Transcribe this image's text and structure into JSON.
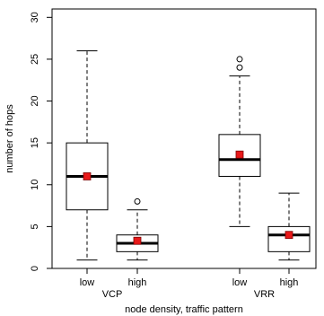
{
  "chart_data": {
    "type": "boxplot",
    "title": "",
    "xlabel": "node density, traffic pattern",
    "ylabel": "number of hops",
    "ylim": [
      0,
      31
    ],
    "yticks": [
      0,
      5,
      10,
      15,
      20,
      25,
      30
    ],
    "groups": [
      "VCP",
      "VRR"
    ],
    "categories": [
      "low",
      "high",
      "low",
      "high"
    ],
    "boxes": [
      {
        "group": "VCP",
        "label": "low",
        "whisker_low": 1,
        "q1": 7,
        "median": 11,
        "q3": 15,
        "whisker_high": 26,
        "mean": 11.0,
        "outliers": []
      },
      {
        "group": "VCP",
        "label": "high",
        "whisker_low": 1,
        "q1": 2,
        "median": 3,
        "q3": 4,
        "whisker_high": 7,
        "mean": 3.3,
        "outliers": [
          8
        ]
      },
      {
        "group": "VRR",
        "label": "low",
        "whisker_low": 5,
        "q1": 11,
        "median": 13,
        "q3": 16,
        "whisker_high": 23,
        "mean": 13.6,
        "outliers": [
          24,
          25
        ]
      },
      {
        "group": "VRR",
        "label": "high",
        "whisker_low": 1,
        "q1": 2,
        "median": 4,
        "q3": 5,
        "whisker_high": 9,
        "mean": 4.0,
        "outliers": []
      }
    ],
    "mean_marker_color": "#e8191a",
    "grid": false
  }
}
